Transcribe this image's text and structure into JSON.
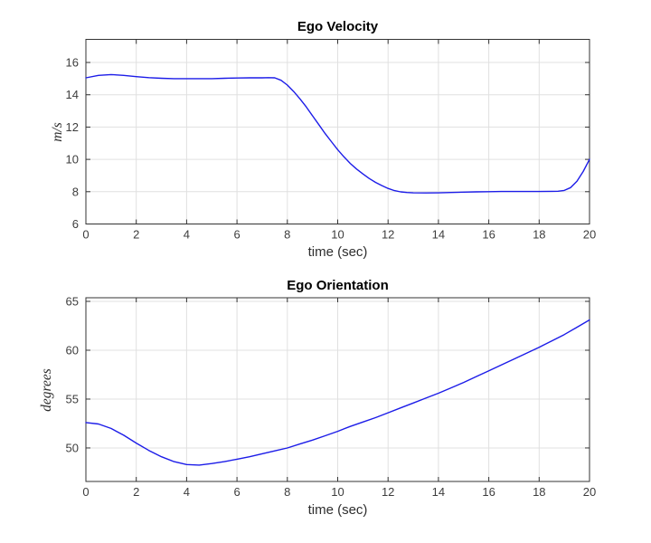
{
  "figure": {
    "background": "#ffffff"
  },
  "styles": {
    "axis_color": "#333333",
    "grid_color": "#e0e0e0",
    "tick_label_color": "#3d3d3d",
    "title_color": "#000000",
    "line_color": "#1c1ce8"
  },
  "chart_data": [
    {
      "type": "line",
      "title": "Ego Velocity",
      "xlabel": "time (sec)",
      "ylabel": "m/s",
      "xlim": [
        0,
        20
      ],
      "ylim": [
        6,
        17.43
      ],
      "xticks": [
        0,
        2,
        4,
        6,
        8,
        10,
        12,
        14,
        16,
        18,
        20
      ],
      "yticks": [
        6,
        8,
        10,
        12,
        14,
        16
      ],
      "grid": true,
      "legend": null,
      "series": [
        {
          "name": "ego-velocity",
          "x": [
            0,
            0.5,
            1,
            1.5,
            2,
            2.5,
            3,
            3.5,
            4,
            4.5,
            5,
            5.5,
            6,
            6.5,
            7,
            7.25,
            7.5,
            7.75,
            8,
            8.25,
            8.5,
            8.75,
            9,
            9.25,
            9.5,
            9.75,
            10,
            10.25,
            10.5,
            10.75,
            11,
            11.25,
            11.5,
            11.75,
            12,
            12.25,
            12.5,
            12.75,
            13,
            13.5,
            14,
            14.5,
            15,
            15.5,
            16,
            16.5,
            17,
            17.5,
            18,
            18.5,
            18.75,
            19,
            19.25,
            19.5,
            19.75,
            20
          ],
          "y": [
            15.05,
            15.2,
            15.25,
            15.2,
            15.12,
            15.06,
            15.02,
            15.0,
            15.0,
            15.0,
            15.0,
            15.02,
            15.04,
            15.05,
            15.05,
            15.06,
            15.05,
            14.9,
            14.6,
            14.2,
            13.75,
            13.25,
            12.7,
            12.15,
            11.6,
            11.1,
            10.6,
            10.15,
            9.75,
            9.4,
            9.1,
            8.82,
            8.58,
            8.38,
            8.2,
            8.07,
            7.99,
            7.95,
            7.93,
            7.92,
            7.93,
            7.95,
            7.97,
            7.99,
            8.0,
            8.01,
            8.01,
            8.01,
            8.01,
            8.02,
            8.03,
            8.08,
            8.25,
            8.65,
            9.25,
            10.0
          ]
        }
      ]
    },
    {
      "type": "line",
      "title": "Ego Orientation",
      "xlabel": "time (sec)",
      "ylabel": "degrees",
      "xlim": [
        0,
        20
      ],
      "ylim": [
        46.57,
        65.37
      ],
      "xticks": [
        0,
        2,
        4,
        6,
        8,
        10,
        12,
        14,
        16,
        18,
        20
      ],
      "yticks": [
        50,
        55,
        60,
        65
      ],
      "grid": true,
      "legend": null,
      "series": [
        {
          "name": "ego-orientation",
          "x": [
            0,
            0.5,
            1,
            1.5,
            2,
            2.5,
            3,
            3.5,
            4,
            4.5,
            5,
            5.5,
            6,
            6.5,
            7,
            7.5,
            8,
            8.5,
            9,
            9.5,
            10,
            10.5,
            11,
            11.5,
            12,
            12.5,
            13,
            13.5,
            14,
            14.5,
            15,
            15.5,
            16,
            16.5,
            17,
            17.5,
            18,
            18.5,
            19,
            19.5,
            20
          ],
          "y": [
            52.6,
            52.45,
            52.0,
            51.3,
            50.5,
            49.75,
            49.1,
            48.6,
            48.3,
            48.25,
            48.4,
            48.6,
            48.85,
            49.1,
            49.4,
            49.7,
            50.0,
            50.4,
            50.8,
            51.25,
            51.7,
            52.2,
            52.65,
            53.1,
            53.6,
            54.1,
            54.6,
            55.1,
            55.6,
            56.15,
            56.7,
            57.3,
            57.9,
            58.5,
            59.1,
            59.7,
            60.3,
            60.95,
            61.6,
            62.35,
            63.1
          ]
        }
      ]
    }
  ]
}
